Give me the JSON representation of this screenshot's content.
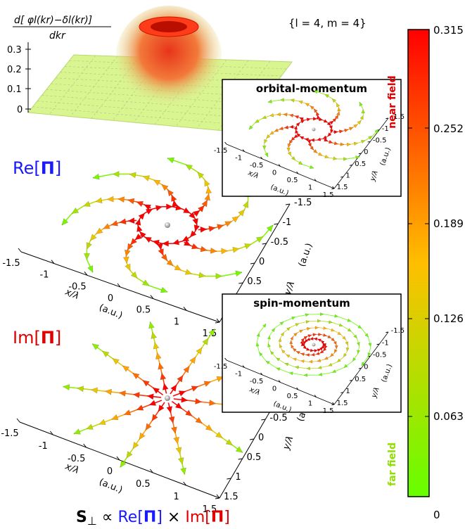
{
  "surface": {
    "label_top": "d[ φl(kr)−δl(kr)]",
    "label_bottom": "dkr",
    "z_ticks": [
      "0.3",
      "0.2",
      "0.1",
      "0"
    ],
    "mode_label": "{l = 4, m = 4}"
  },
  "panels": {
    "re": {
      "label_pre": "Re[",
      "label_sym": "Π",
      "label_post": "]"
    },
    "im": {
      "label_pre": "Im[",
      "label_sym": "Π",
      "label_post": "]"
    }
  },
  "axes": {
    "x_ticks": [
      "-1.5",
      "-1",
      "-0.5",
      "0",
      "0.5",
      "1",
      "1.5"
    ],
    "y_ticks": [
      "1.5",
      "1",
      "0.5",
      "0",
      "-0.5",
      "-1",
      "-1.5"
    ],
    "x_label": "x/λ",
    "y_label": "y/λ",
    "unit": "(a.u.)"
  },
  "insets": {
    "orbital": {
      "title": "orbital-momentum",
      "x_ticks": [
        "-1.5",
        "-1",
        "-0.5",
        "0",
        "0.5",
        "1",
        "1.5"
      ],
      "y_ticks": [
        "1.5",
        "1",
        "0.5",
        "0",
        "-0.5",
        "-1",
        "-1.5"
      ]
    },
    "spin": {
      "title": "spin-momentum",
      "x_ticks": [
        "-1.5",
        "-1",
        "-0.5",
        "0",
        "0.5",
        "1",
        "1.5"
      ],
      "y_ticks": [
        "1.5",
        "1",
        "0.5",
        "0",
        "-0.5",
        "-1",
        "-1.5"
      ]
    }
  },
  "colorbar": {
    "ticks": [
      "0.315",
      "0.252",
      "0.189",
      "0.126",
      "0.063",
      "0"
    ],
    "near_label": "near field",
    "far_label": "far field",
    "colors": {
      "top": "#ff0000",
      "mid": "#ffbf00",
      "bottom": "#66ff00"
    }
  },
  "formula": {
    "s": "S",
    "perp": "⊥",
    "prop": " ∝ ",
    "re": "Re[",
    "pi": "Π",
    "close": "]",
    "times": " × ",
    "im": "Im["
  }
}
